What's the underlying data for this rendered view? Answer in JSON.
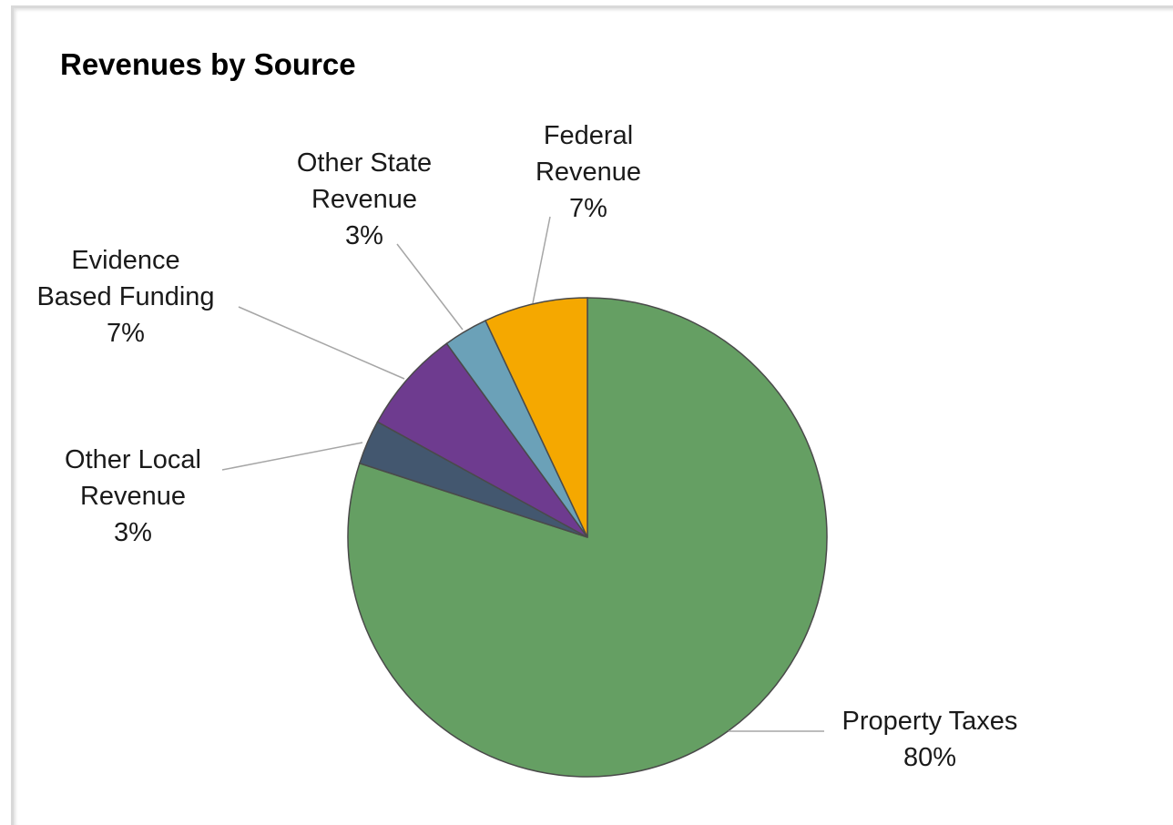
{
  "chart_data": {
    "type": "pie",
    "title": "Revenues by Source",
    "slices": [
      {
        "label": [
          "Property",
          "Taxes"
        ],
        "label_lines": [
          "Property Taxes"
        ],
        "percent_label": "80%",
        "value": 80,
        "color": "#659f63"
      },
      {
        "label_lines": [
          "Other Local",
          "Revenue"
        ],
        "percent_label": "3%",
        "value": 3,
        "color": "#43576f"
      },
      {
        "label_lines": [
          "Evidence",
          "Based Funding"
        ],
        "percent_label": "7%",
        "value": 7,
        "color": "#6e3b8f"
      },
      {
        "label_lines": [
          "Other State",
          "Revenue"
        ],
        "percent_label": "3%",
        "value": 3,
        "color": "#6ba1b8"
      },
      {
        "label_lines": [
          "Federal",
          "Revenue"
        ],
        "percent_label": "7%",
        "value": 7,
        "color": "#f5a800"
      }
    ],
    "start_angle_deg": 0,
    "direction": "clockwise",
    "legend": "none",
    "data_labels": "outside with leader lines"
  }
}
